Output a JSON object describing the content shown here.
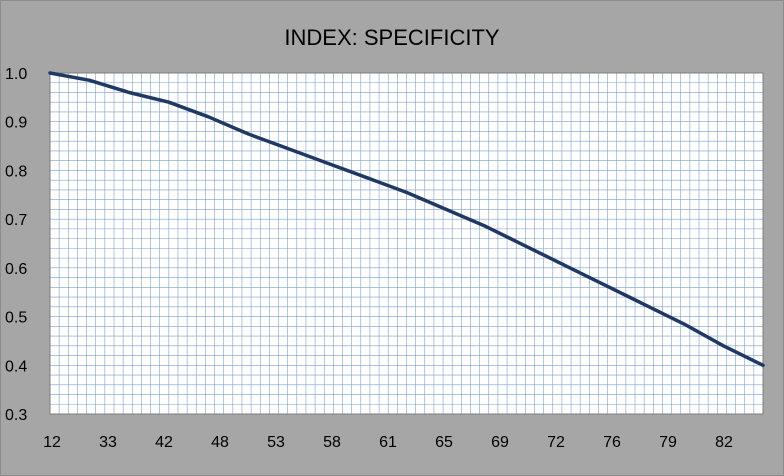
{
  "chart_data": {
    "type": "line",
    "title": "INDEX: SPECIFICITY",
    "xlabel": "",
    "ylabel": "",
    "x_tick_labels": [
      "12",
      "33",
      "42",
      "48",
      "53",
      "58",
      "61",
      "65",
      "69",
      "72",
      "76",
      "79",
      "82"
    ],
    "ylim": [
      0.3,
      1.0
    ],
    "y_ticks": [
      0.3,
      0.4,
      0.5,
      0.6,
      0.7,
      0.8,
      0.9,
      1.0
    ],
    "y_tick_labels": [
      "0.3",
      "0.4",
      "0.5",
      "0.6",
      "0.7",
      "0.8",
      "0.9",
      "1.0"
    ],
    "grid": true,
    "legend": "none",
    "series": [
      {
        "color": "#1f3864",
        "values": [
          1.0,
          0.985,
          0.96,
          0.94,
          0.91,
          0.875,
          0.845,
          0.815,
          0.785,
          0.755,
          0.72,
          0.685,
          0.645,
          0.605,
          0.565,
          0.525,
          0.485,
          0.44,
          0.4
        ]
      }
    ]
  }
}
